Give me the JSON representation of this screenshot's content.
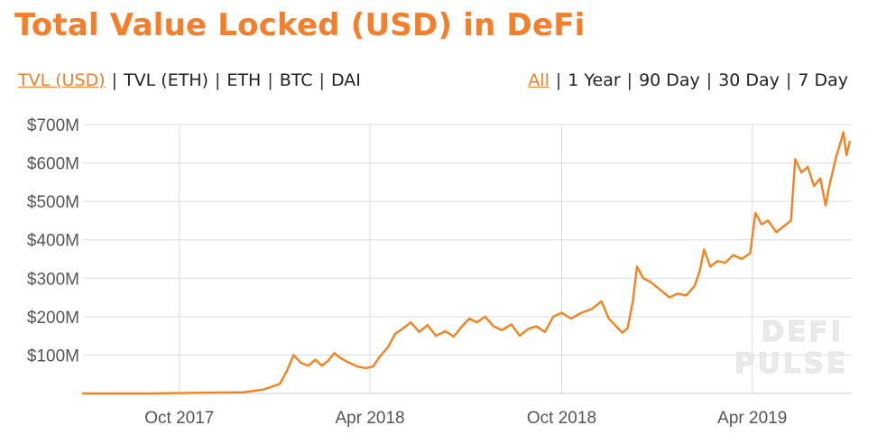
{
  "page": {
    "title": "Total Value Locked (USD) in DeFi"
  },
  "metric_tabs": [
    {
      "label": "TVL (USD)",
      "active": true
    },
    {
      "label": "TVL (ETH)",
      "active": false
    },
    {
      "label": "ETH",
      "active": false
    },
    {
      "label": "BTC",
      "active": false
    },
    {
      "label": "DAI",
      "active": false
    }
  ],
  "range_tabs": [
    {
      "label": "All",
      "active": true
    },
    {
      "label": "1 Year",
      "active": false
    },
    {
      "label": "90 Day",
      "active": false
    },
    {
      "label": "30 Day",
      "active": false
    },
    {
      "label": "7 Day",
      "active": false
    }
  ],
  "watermark": [
    "DEFI",
    "PULSE"
  ],
  "colors": {
    "accent": "#f37e2b",
    "line": "#f58220",
    "grid": "#dcdcdc"
  },
  "chart_data": {
    "type": "line",
    "title": "Total Value Locked (USD) in DeFi",
    "xlabel": "",
    "ylabel": "",
    "grid": true,
    "x_ticks": [
      "Oct 2017",
      "Apr 2018",
      "Oct 2018",
      "Apr 2019"
    ],
    "x_tick_dates": [
      "2017-10-01",
      "2018-04-01",
      "2018-10-01",
      "2019-04-01"
    ],
    "xlim": [
      "2017-07-01",
      "2019-07-05"
    ],
    "y_ticks": [
      "$700M",
      "$600M",
      "$500M",
      "$400M",
      "$300M",
      "$200M",
      "$100M"
    ],
    "y_tick_values": [
      700,
      600,
      500,
      400,
      300,
      200,
      100
    ],
    "ylim": [
      0,
      700
    ],
    "y_unit": "USD millions",
    "series": [
      {
        "name": "TVL (USD)",
        "points": [
          [
            "2017-07-01",
            0
          ],
          [
            "2017-08-01",
            0
          ],
          [
            "2017-09-01",
            0
          ],
          [
            "2017-10-01",
            1
          ],
          [
            "2017-11-01",
            2
          ],
          [
            "2017-12-01",
            3
          ],
          [
            "2017-12-20",
            10
          ],
          [
            "2018-01-05",
            25
          ],
          [
            "2018-01-12",
            60
          ],
          [
            "2018-01-18",
            100
          ],
          [
            "2018-01-25",
            80
          ],
          [
            "2018-02-01",
            72
          ],
          [
            "2018-02-08",
            88
          ],
          [
            "2018-02-14",
            72
          ],
          [
            "2018-02-20",
            85
          ],
          [
            "2018-02-26",
            105
          ],
          [
            "2018-03-04",
            92
          ],
          [
            "2018-03-12",
            80
          ],
          [
            "2018-03-20",
            70
          ],
          [
            "2018-03-28",
            66
          ],
          [
            "2018-04-04",
            70
          ],
          [
            "2018-04-10",
            95
          ],
          [
            "2018-04-18",
            120
          ],
          [
            "2018-04-25",
            155
          ],
          [
            "2018-05-03",
            170
          ],
          [
            "2018-05-10",
            185
          ],
          [
            "2018-05-18",
            160
          ],
          [
            "2018-05-26",
            178
          ],
          [
            "2018-06-03",
            150
          ],
          [
            "2018-06-12",
            162
          ],
          [
            "2018-06-20",
            148
          ],
          [
            "2018-06-28",
            175
          ],
          [
            "2018-07-05",
            195
          ],
          [
            "2018-07-12",
            185
          ],
          [
            "2018-07-20",
            200
          ],
          [
            "2018-07-28",
            175
          ],
          [
            "2018-08-05",
            165
          ],
          [
            "2018-08-14",
            180
          ],
          [
            "2018-08-22",
            150
          ],
          [
            "2018-08-30",
            168
          ],
          [
            "2018-09-07",
            175
          ],
          [
            "2018-09-15",
            160
          ],
          [
            "2018-09-23",
            200
          ],
          [
            "2018-10-01",
            210
          ],
          [
            "2018-10-10",
            195
          ],
          [
            "2018-10-20",
            210
          ],
          [
            "2018-10-30",
            220
          ],
          [
            "2018-11-08",
            240
          ],
          [
            "2018-11-15",
            195
          ],
          [
            "2018-11-22",
            175
          ],
          [
            "2018-11-28",
            158
          ],
          [
            "2018-12-03",
            170
          ],
          [
            "2018-12-08",
            240
          ],
          [
            "2018-12-12",
            330
          ],
          [
            "2018-12-18",
            300
          ],
          [
            "2018-12-25",
            290
          ],
          [
            "2019-01-03",
            270
          ],
          [
            "2019-01-12",
            250
          ],
          [
            "2019-01-20",
            260
          ],
          [
            "2019-01-28",
            255
          ],
          [
            "2019-02-05",
            280
          ],
          [
            "2019-02-10",
            320
          ],
          [
            "2019-02-14",
            375
          ],
          [
            "2019-02-20",
            330
          ],
          [
            "2019-02-27",
            345
          ],
          [
            "2019-03-06",
            340
          ],
          [
            "2019-03-14",
            360
          ],
          [
            "2019-03-22",
            350
          ],
          [
            "2019-03-30",
            365
          ],
          [
            "2019-04-04",
            470
          ],
          [
            "2019-04-10",
            440
          ],
          [
            "2019-04-16",
            450
          ],
          [
            "2019-04-24",
            420
          ],
          [
            "2019-05-01",
            435
          ],
          [
            "2019-05-08",
            450
          ],
          [
            "2019-05-12",
            610
          ],
          [
            "2019-05-18",
            575
          ],
          [
            "2019-05-24",
            590
          ],
          [
            "2019-05-30",
            540
          ],
          [
            "2019-06-05",
            560
          ],
          [
            "2019-06-10",
            490
          ],
          [
            "2019-06-14",
            545
          ],
          [
            "2019-06-20",
            615
          ],
          [
            "2019-06-24",
            650
          ],
          [
            "2019-06-27",
            680
          ],
          [
            "2019-06-30",
            620
          ],
          [
            "2019-07-03",
            655
          ]
        ]
      }
    ]
  }
}
